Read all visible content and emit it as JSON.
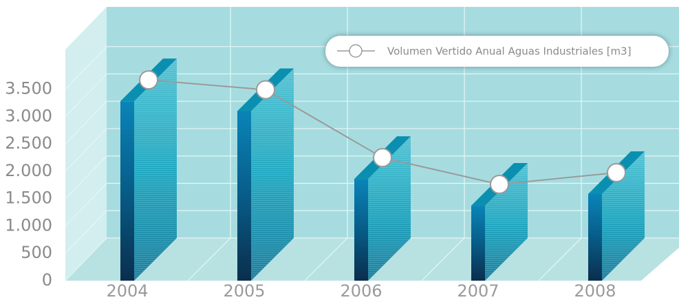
{
  "chart_data": {
    "type": "bar3d_line",
    "categories": [
      "2004",
      "2005",
      "2006",
      "2007",
      "2008"
    ],
    "series": [
      {
        "name": "Volumen Vertido Anual Aguas Industriales [m3]",
        "color": "#9a9a9a",
        "bar_color": "#0a8fb0",
        "values": [
          3280,
          3100,
          1860,
          1370,
          1585
        ]
      }
    ],
    "ylim": [
      0,
      4200
    ],
    "yticks": [
      0,
      500,
      {
        "value": 1000,
        "label": "1.000"
      },
      {
        "value": 1500,
        "label": "1.500"
      },
      {
        "value": 2000,
        "label": "2.000"
      },
      {
        "value": 2500,
        "label": "2.500"
      },
      {
        "value": 3000,
        "label": "3.000"
      },
      {
        "value": 3500,
        "label": "3.500"
      }
    ],
    "grid": true,
    "legend": "upper right"
  }
}
